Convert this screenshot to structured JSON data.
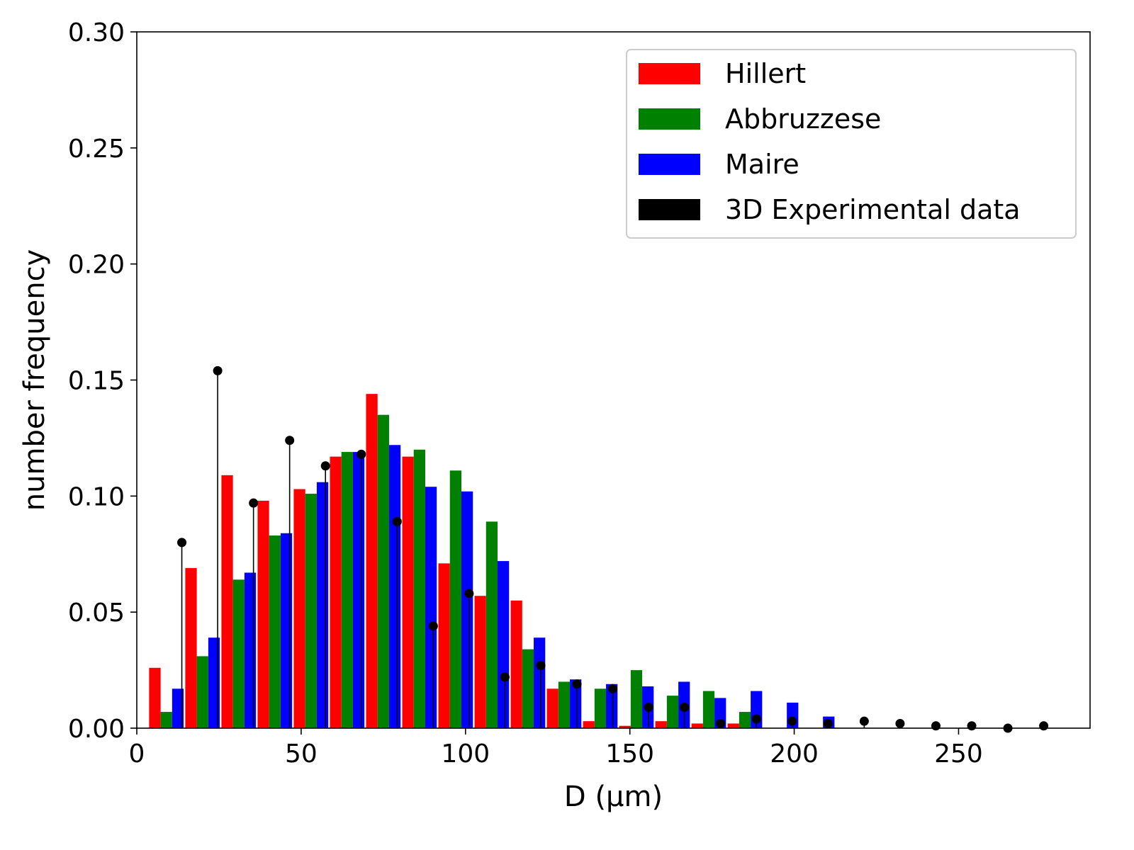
{
  "chart_data": {
    "type": "bar",
    "xlabel": "D (μm)",
    "ylabel": "number frequency",
    "xlim": [
      0,
      290
    ],
    "ylim": [
      0,
      0.3
    ],
    "xticks": [
      0,
      50,
      100,
      150,
      200,
      250
    ],
    "xtick_labels": [
      "0",
      "50",
      "100",
      "150",
      "200",
      "250"
    ],
    "yticks": [
      0.0,
      0.05,
      0.1,
      0.15,
      0.2,
      0.25,
      0.3
    ],
    "ytick_labels": [
      "0.00",
      "0.05",
      "0.10",
      "0.15",
      "0.20",
      "0.25",
      "0.30"
    ],
    "grid": false,
    "legend_position": "top-right",
    "bar_width": 3.5,
    "series": [
      {
        "name": "Hillert",
        "color": "#ff0000",
        "x": [
          5.5,
          16.5,
          27.5,
          38.5,
          49.5,
          60.5,
          71.5,
          82.5,
          93.5,
          104.5,
          115.5,
          126.5,
          137.5,
          148.5,
          159.5,
          170.5,
          181.5
        ],
        "values": [
          0.026,
          0.069,
          0.109,
          0.098,
          0.103,
          0.117,
          0.144,
          0.117,
          0.071,
          0.057,
          0.055,
          0.017,
          0.003,
          0.001,
          0.003,
          0.002,
          0.002
        ]
      },
      {
        "name": "Abbruzzese",
        "color": "#008000",
        "x": [
          9.0,
          20.0,
          31.0,
          42.0,
          53.0,
          64.0,
          75.0,
          86.0,
          97.0,
          108.0,
          119.0,
          130.0,
          141.0,
          152.0,
          163.0,
          174.0,
          185.0
        ],
        "values": [
          0.007,
          0.031,
          0.064,
          0.083,
          0.101,
          0.119,
          0.135,
          0.12,
          0.111,
          0.089,
          0.034,
          0.02,
          0.017,
          0.025,
          0.014,
          0.016,
          0.007
        ]
      },
      {
        "name": "Maire",
        "color": "#0000ff",
        "x": [
          12.5,
          23.5,
          34.5,
          45.5,
          56.5,
          67.5,
          78.5,
          89.5,
          100.5,
          111.5,
          122.5,
          133.5,
          144.5,
          155.5,
          166.5,
          177.5,
          188.5,
          199.5,
          210.5
        ],
        "values": [
          0.017,
          0.039,
          0.067,
          0.084,
          0.106,
          0.119,
          0.122,
          0.104,
          0.102,
          0.072,
          0.039,
          0.021,
          0.019,
          0.018,
          0.02,
          0.013,
          0.016,
          0.011,
          0.005
        ]
      },
      {
        "name": "3D Experimental data",
        "color": "#000000",
        "kind": "stem",
        "x": [
          13.7,
          24.6,
          35.5,
          46.5,
          57.4,
          68.3,
          79.2,
          90.2,
          101.1,
          112.0,
          122.9,
          133.9,
          144.8,
          155.7,
          166.6,
          177.6,
          188.5,
          199.4,
          210.3,
          221.3,
          232.2,
          243.1,
          254.0,
          265.0,
          275.9
        ],
        "values": [
          0.08,
          0.154,
          0.097,
          0.124,
          0.113,
          0.118,
          0.089,
          0.044,
          0.058,
          0.022,
          0.027,
          0.019,
          0.017,
          0.009,
          0.009,
          0.002,
          0.004,
          0.003,
          0.002,
          0.003,
          0.002,
          0.001,
          0.001,
          0.0,
          0.001
        ]
      }
    ]
  }
}
